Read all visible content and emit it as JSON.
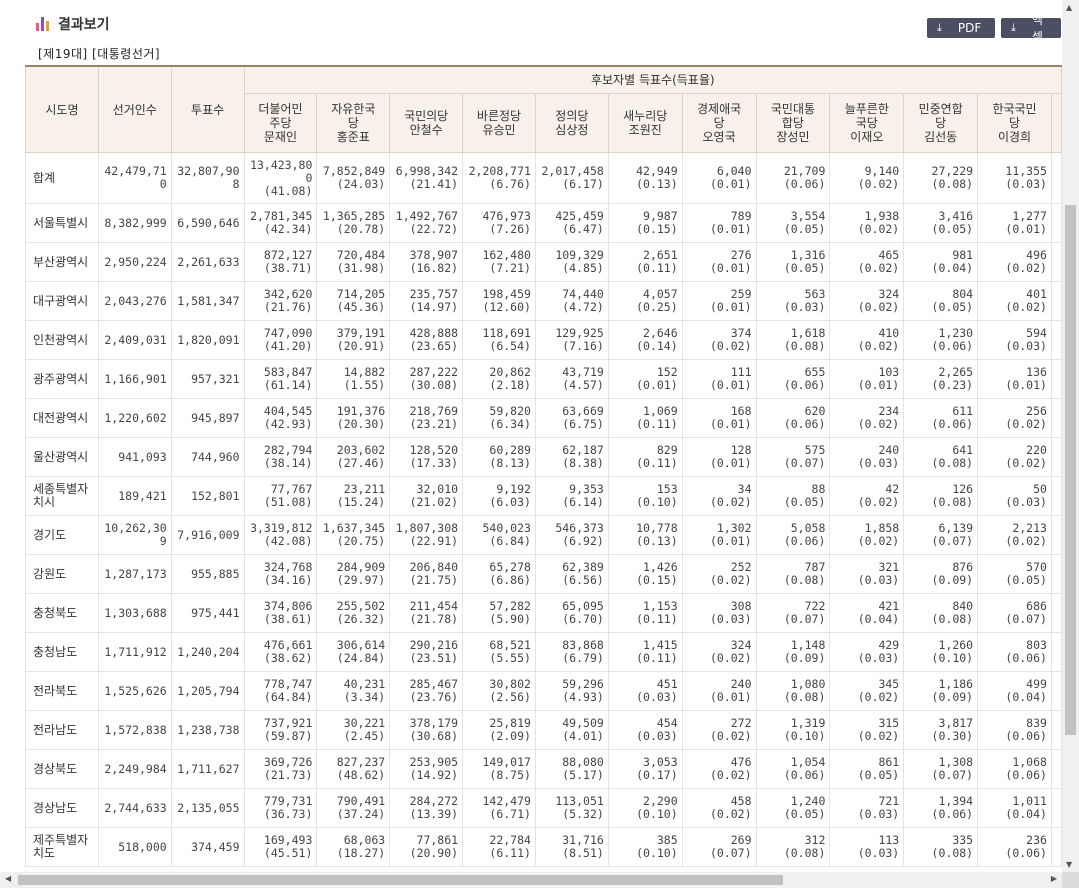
{
  "header": {
    "title": "결과보기",
    "icon": "bar-chart-icon"
  },
  "buttons": {
    "pdf": "PDF",
    "excel": "엑셀",
    "icon": "download-icon"
  },
  "subtitle": "[제19대] [대통령선거]",
  "table": {
    "fixed_headers": [
      "시도명",
      "선거인수",
      "투표수"
    ],
    "group_header": "후보자별 득표수(득표율)",
    "candidates": [
      [
        "더불어민",
        "주당",
        "문재인"
      ],
      [
        "자유한국",
        "당",
        "홍준표"
      ],
      [
        "국민의당",
        "안철수"
      ],
      [
        "바른정당",
        "유승민"
      ],
      [
        "정의당",
        "심상정"
      ],
      [
        "새누리당",
        "조원진"
      ],
      [
        "경제애국",
        "당",
        "오영국"
      ],
      [
        "국민대통",
        "합당",
        "장성민"
      ],
      [
        "늘푸른한",
        "국당",
        "이재오"
      ],
      [
        "민중연합",
        "당",
        "김선동"
      ],
      [
        "한국국민",
        "당",
        "이경희"
      ]
    ],
    "rows": [
      {
        "region": "합계",
        "electors": "42,479,710",
        "turnout": "32,807,908",
        "votes": [
          [
            "13,423,800",
            "(41.08)"
          ],
          [
            "7,852,849",
            "(24.03)"
          ],
          [
            "6,998,342",
            "(21.41)"
          ],
          [
            "2,208,771",
            "(6.76)"
          ],
          [
            "2,017,458",
            "(6.17)"
          ],
          [
            "42,949",
            "(0.13)"
          ],
          [
            "6,040",
            "(0.01)"
          ],
          [
            "21,709",
            "(0.06)"
          ],
          [
            "9,140",
            "(0.02)"
          ],
          [
            "27,229",
            "(0.08)"
          ],
          [
            "11,355",
            "(0.03)"
          ]
        ]
      },
      {
        "region": "서울특별시",
        "electors": "8,382,999",
        "turnout": "6,590,646",
        "votes": [
          [
            "2,781,345",
            "(42.34)"
          ],
          [
            "1,365,285",
            "(20.78)"
          ],
          [
            "1,492,767",
            "(22.72)"
          ],
          [
            "476,973",
            "(7.26)"
          ],
          [
            "425,459",
            "(6.47)"
          ],
          [
            "9,987",
            "(0.15)"
          ],
          [
            "789",
            "(0.01)"
          ],
          [
            "3,554",
            "(0.05)"
          ],
          [
            "1,938",
            "(0.02)"
          ],
          [
            "3,416",
            "(0.05)"
          ],
          [
            "1,277",
            "(0.01)"
          ]
        ]
      },
      {
        "region": "부산광역시",
        "electors": "2,950,224",
        "turnout": "2,261,633",
        "votes": [
          [
            "872,127",
            "(38.71)"
          ],
          [
            "720,484",
            "(31.98)"
          ],
          [
            "378,907",
            "(16.82)"
          ],
          [
            "162,480",
            "(7.21)"
          ],
          [
            "109,329",
            "(4.85)"
          ],
          [
            "2,651",
            "(0.11)"
          ],
          [
            "276",
            "(0.01)"
          ],
          [
            "1,316",
            "(0.05)"
          ],
          [
            "465",
            "(0.02)"
          ],
          [
            "981",
            "(0.04)"
          ],
          [
            "496",
            "(0.02)"
          ]
        ]
      },
      {
        "region": "대구광역시",
        "electors": "2,043,276",
        "turnout": "1,581,347",
        "votes": [
          [
            "342,620",
            "(21.76)"
          ],
          [
            "714,205",
            "(45.36)"
          ],
          [
            "235,757",
            "(14.97)"
          ],
          [
            "198,459",
            "(12.60)"
          ],
          [
            "74,440",
            "(4.72)"
          ],
          [
            "4,057",
            "(0.25)"
          ],
          [
            "259",
            "(0.01)"
          ],
          [
            "563",
            "(0.03)"
          ],
          [
            "324",
            "(0.02)"
          ],
          [
            "804",
            "(0.05)"
          ],
          [
            "401",
            "(0.02)"
          ]
        ]
      },
      {
        "region": "인천광역시",
        "electors": "2,409,031",
        "turnout": "1,820,091",
        "votes": [
          [
            "747,090",
            "(41.20)"
          ],
          [
            "379,191",
            "(20.91)"
          ],
          [
            "428,888",
            "(23.65)"
          ],
          [
            "118,691",
            "(6.54)"
          ],
          [
            "129,925",
            "(7.16)"
          ],
          [
            "2,646",
            "(0.14)"
          ],
          [
            "374",
            "(0.02)"
          ],
          [
            "1,618",
            "(0.08)"
          ],
          [
            "410",
            "(0.02)"
          ],
          [
            "1,230",
            "(0.06)"
          ],
          [
            "594",
            "(0.03)"
          ]
        ]
      },
      {
        "region": "광주광역시",
        "electors": "1,166,901",
        "turnout": "957,321",
        "votes": [
          [
            "583,847",
            "(61.14)"
          ],
          [
            "14,882",
            "(1.55)"
          ],
          [
            "287,222",
            "(30.08)"
          ],
          [
            "20,862",
            "(2.18)"
          ],
          [
            "43,719",
            "(4.57)"
          ],
          [
            "152",
            "(0.01)"
          ],
          [
            "111",
            "(0.01)"
          ],
          [
            "655",
            "(0.06)"
          ],
          [
            "103",
            "(0.01)"
          ],
          [
            "2,265",
            "(0.23)"
          ],
          [
            "136",
            "(0.01)"
          ]
        ]
      },
      {
        "region": "대전광역시",
        "electors": "1,220,602",
        "turnout": "945,897",
        "votes": [
          [
            "404,545",
            "(42.93)"
          ],
          [
            "191,376",
            "(20.30)"
          ],
          [
            "218,769",
            "(23.21)"
          ],
          [
            "59,820",
            "(6.34)"
          ],
          [
            "63,669",
            "(6.75)"
          ],
          [
            "1,069",
            "(0.11)"
          ],
          [
            "168",
            "(0.01)"
          ],
          [
            "620",
            "(0.06)"
          ],
          [
            "234",
            "(0.02)"
          ],
          [
            "611",
            "(0.06)"
          ],
          [
            "256",
            "(0.02)"
          ]
        ]
      },
      {
        "region": "울산광역시",
        "electors": "941,093",
        "turnout": "744,960",
        "votes": [
          [
            "282,794",
            "(38.14)"
          ],
          [
            "203,602",
            "(27.46)"
          ],
          [
            "128,520",
            "(17.33)"
          ],
          [
            "60,289",
            "(8.13)"
          ],
          [
            "62,187",
            "(8.38)"
          ],
          [
            "829",
            "(0.11)"
          ],
          [
            "128",
            "(0.01)"
          ],
          [
            "575",
            "(0.07)"
          ],
          [
            "240",
            "(0.03)"
          ],
          [
            "641",
            "(0.08)"
          ],
          [
            "220",
            "(0.02)"
          ]
        ]
      },
      {
        "region": "세종특별자치시",
        "electors": "189,421",
        "turnout": "152,801",
        "votes": [
          [
            "77,767",
            "(51.08)"
          ],
          [
            "23,211",
            "(15.24)"
          ],
          [
            "32,010",
            "(21.02)"
          ],
          [
            "9,192",
            "(6.03)"
          ],
          [
            "9,353",
            "(6.14)"
          ],
          [
            "153",
            "(0.10)"
          ],
          [
            "34",
            "(0.02)"
          ],
          [
            "88",
            "(0.05)"
          ],
          [
            "42",
            "(0.02)"
          ],
          [
            "126",
            "(0.08)"
          ],
          [
            "50",
            "(0.03)"
          ]
        ]
      },
      {
        "region": "경기도",
        "electors": "10,262,309",
        "turnout": "7,916,009",
        "votes": [
          [
            "3,319,812",
            "(42.08)"
          ],
          [
            "1,637,345",
            "(20.75)"
          ],
          [
            "1,807,308",
            "(22.91)"
          ],
          [
            "540,023",
            "(6.84)"
          ],
          [
            "546,373",
            "(6.92)"
          ],
          [
            "10,778",
            "(0.13)"
          ],
          [
            "1,302",
            "(0.01)"
          ],
          [
            "5,058",
            "(0.06)"
          ],
          [
            "1,858",
            "(0.02)"
          ],
          [
            "6,139",
            "(0.07)"
          ],
          [
            "2,213",
            "(0.02)"
          ]
        ]
      },
      {
        "region": "강원도",
        "electors": "1,287,173",
        "turnout": "955,885",
        "votes": [
          [
            "324,768",
            "(34.16)"
          ],
          [
            "284,909",
            "(29.97)"
          ],
          [
            "206,840",
            "(21.75)"
          ],
          [
            "65,278",
            "(6.86)"
          ],
          [
            "62,389",
            "(6.56)"
          ],
          [
            "1,426",
            "(0.15)"
          ],
          [
            "252",
            "(0.02)"
          ],
          [
            "787",
            "(0.08)"
          ],
          [
            "321",
            "(0.03)"
          ],
          [
            "876",
            "(0.09)"
          ],
          [
            "570",
            "(0.05)"
          ]
        ]
      },
      {
        "region": "충청북도",
        "electors": "1,303,688",
        "turnout": "975,441",
        "votes": [
          [
            "374,806",
            "(38.61)"
          ],
          [
            "255,502",
            "(26.32)"
          ],
          [
            "211,454",
            "(21.78)"
          ],
          [
            "57,282",
            "(5.90)"
          ],
          [
            "65,095",
            "(6.70)"
          ],
          [
            "1,153",
            "(0.11)"
          ],
          [
            "308",
            "(0.03)"
          ],
          [
            "722",
            "(0.07)"
          ],
          [
            "421",
            "(0.04)"
          ],
          [
            "840",
            "(0.08)"
          ],
          [
            "686",
            "(0.07)"
          ]
        ]
      },
      {
        "region": "충청남도",
        "electors": "1,711,912",
        "turnout": "1,240,204",
        "votes": [
          [
            "476,661",
            "(38.62)"
          ],
          [
            "306,614",
            "(24.84)"
          ],
          [
            "290,216",
            "(23.51)"
          ],
          [
            "68,521",
            "(5.55)"
          ],
          [
            "83,868",
            "(6.79)"
          ],
          [
            "1,415",
            "(0.11)"
          ],
          [
            "324",
            "(0.02)"
          ],
          [
            "1,148",
            "(0.09)"
          ],
          [
            "429",
            "(0.03)"
          ],
          [
            "1,260",
            "(0.10)"
          ],
          [
            "803",
            "(0.06)"
          ]
        ]
      },
      {
        "region": "전라북도",
        "electors": "1,525,626",
        "turnout": "1,205,794",
        "votes": [
          [
            "778,747",
            "(64.84)"
          ],
          [
            "40,231",
            "(3.34)"
          ],
          [
            "285,467",
            "(23.76)"
          ],
          [
            "30,802",
            "(2.56)"
          ],
          [
            "59,296",
            "(4.93)"
          ],
          [
            "451",
            "(0.03)"
          ],
          [
            "240",
            "(0.01)"
          ],
          [
            "1,080",
            "(0.08)"
          ],
          [
            "345",
            "(0.02)"
          ],
          [
            "1,186",
            "(0.09)"
          ],
          [
            "499",
            "(0.04)"
          ]
        ]
      },
      {
        "region": "전라남도",
        "electors": "1,572,838",
        "turnout": "1,238,738",
        "votes": [
          [
            "737,921",
            "(59.87)"
          ],
          [
            "30,221",
            "(2.45)"
          ],
          [
            "378,179",
            "(30.68)"
          ],
          [
            "25,819",
            "(2.09)"
          ],
          [
            "49,509",
            "(4.01)"
          ],
          [
            "454",
            "(0.03)"
          ],
          [
            "272",
            "(0.02)"
          ],
          [
            "1,319",
            "(0.10)"
          ],
          [
            "315",
            "(0.02)"
          ],
          [
            "3,817",
            "(0.30)"
          ],
          [
            "839",
            "(0.06)"
          ]
        ]
      },
      {
        "region": "경상북도",
        "electors": "2,249,984",
        "turnout": "1,711,627",
        "votes": [
          [
            "369,726",
            "(21.73)"
          ],
          [
            "827,237",
            "(48.62)"
          ],
          [
            "253,905",
            "(14.92)"
          ],
          [
            "149,017",
            "(8.75)"
          ],
          [
            "88,080",
            "(5.17)"
          ],
          [
            "3,053",
            "(0.17)"
          ],
          [
            "476",
            "(0.02)"
          ],
          [
            "1,054",
            "(0.06)"
          ],
          [
            "861",
            "(0.05)"
          ],
          [
            "1,308",
            "(0.07)"
          ],
          [
            "1,068",
            "(0.06)"
          ]
        ]
      },
      {
        "region": "경상남도",
        "electors": "2,744,633",
        "turnout": "2,135,055",
        "votes": [
          [
            "779,731",
            "(36.73)"
          ],
          [
            "790,491",
            "(37.24)"
          ],
          [
            "284,272",
            "(13.39)"
          ],
          [
            "142,479",
            "(6.71)"
          ],
          [
            "113,051",
            "(5.32)"
          ],
          [
            "2,290",
            "(0.10)"
          ],
          [
            "458",
            "(0.02)"
          ],
          [
            "1,240",
            "(0.05)"
          ],
          [
            "721",
            "(0.03)"
          ],
          [
            "1,394",
            "(0.06)"
          ],
          [
            "1,011",
            "(0.04)"
          ]
        ]
      },
      {
        "region": "제주특별자치도",
        "electors": "518,000",
        "turnout": "374,459",
        "votes": [
          [
            "169,493",
            "(45.51)"
          ],
          [
            "68,063",
            "(18.27)"
          ],
          [
            "77,861",
            "(20.90)"
          ],
          [
            "22,784",
            "(6.11)"
          ],
          [
            "31,716",
            "(8.51)"
          ],
          [
            "385",
            "(0.10)"
          ],
          [
            "269",
            "(0.07)"
          ],
          [
            "312",
            "(0.08)"
          ],
          [
            "113",
            "(0.03)"
          ],
          [
            "335",
            "(0.08)"
          ],
          [
            "236",
            "(0.06)"
          ]
        ]
      }
    ]
  }
}
